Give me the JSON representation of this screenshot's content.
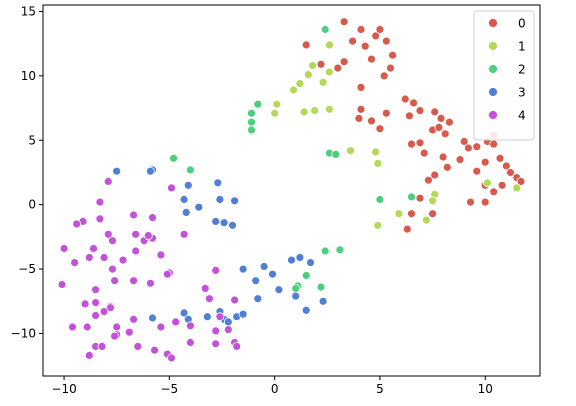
{
  "chart_data": {
    "type": "scatter",
    "title": "",
    "xlabel": "",
    "ylabel": "",
    "xlim": [
      -11.0,
      12.6
    ],
    "ylim": [
      -13.3,
      15.5
    ],
    "xticks": [
      -10,
      -5,
      0,
      5,
      10
    ],
    "yticks": [
      -10,
      -5,
      0,
      5,
      10,
      15
    ],
    "grid": false,
    "legend_position": "top-right",
    "series": [
      {
        "name": "0",
        "color": "#d9594c",
        "points": [
          [
            3.3,
            14.2
          ],
          [
            4.1,
            13.6
          ],
          [
            4.8,
            13.1
          ],
          [
            5.0,
            13.6
          ],
          [
            3.7,
            12.7
          ],
          [
            4.3,
            12.3
          ],
          [
            5.3,
            12.7
          ],
          [
            1.5,
            12.4
          ],
          [
            5.6,
            11.6
          ],
          [
            3.3,
            11.1
          ],
          [
            4.6,
            11.3
          ],
          [
            2.2,
            10.9
          ],
          [
            3.0,
            10.6
          ],
          [
            5.5,
            10.6
          ],
          [
            5.2,
            10.0
          ],
          [
            4.1,
            9.1
          ],
          [
            6.2,
            8.2
          ],
          [
            6.6,
            7.9
          ],
          [
            6.9,
            7.3
          ],
          [
            4.1,
            7.4
          ],
          [
            5.3,
            7.1
          ],
          [
            7.6,
            7.2
          ],
          [
            7.9,
            6.7
          ],
          [
            8.3,
            6.4
          ],
          [
            4.0,
            6.7
          ],
          [
            4.6,
            6.5
          ],
          [
            6.4,
            6.9
          ],
          [
            5.0,
            5.9
          ],
          [
            7.5,
            5.8
          ],
          [
            7.8,
            6.0
          ],
          [
            8.1,
            5.5
          ],
          [
            10.4,
            5.4
          ],
          [
            9.0,
            4.9
          ],
          [
            10.1,
            4.9
          ],
          [
            6.5,
            4.7
          ],
          [
            6.9,
            4.8
          ],
          [
            10.4,
            4.7
          ],
          [
            9.6,
            4.5
          ],
          [
            9.2,
            4.4
          ],
          [
            7.1,
            4.0
          ],
          [
            8.0,
            3.7
          ],
          [
            8.8,
            3.5
          ],
          [
            10.7,
            3.6
          ],
          [
            10.0,
            3.3
          ],
          [
            11.0,
            3.0
          ],
          [
            8.2,
            2.9
          ],
          [
            11.2,
            2.5
          ],
          [
            9.6,
            2.6
          ],
          [
            7.6,
            2.3
          ],
          [
            11.5,
            2.1
          ],
          [
            11.7,
            1.8
          ],
          [
            7.3,
            1.9
          ],
          [
            10.0,
            1.5
          ],
          [
            10.8,
            1.5
          ],
          [
            10.4,
            1.0
          ],
          [
            6.9,
            0.5
          ],
          [
            6.5,
            -0.7
          ],
          [
            7.5,
            -0.7
          ],
          [
            9.3,
            0.2
          ],
          [
            10.0,
            0.2
          ],
          [
            6.3,
            -1.9
          ]
        ]
      },
      {
        "name": "1",
        "color": "#b6d858",
        "points": [
          [
            2.6,
            12.4
          ],
          [
            1.8,
            10.8
          ],
          [
            1.6,
            10.1
          ],
          [
            2.6,
            10.3
          ],
          [
            1.2,
            9.4
          ],
          [
            0.9,
            8.9
          ],
          [
            2.3,
            9.5
          ],
          [
            0.1,
            7.8
          ],
          [
            0.0,
            7.1
          ],
          [
            1.4,
            7.2
          ],
          [
            1.9,
            7.3
          ],
          [
            2.6,
            7.4
          ],
          [
            3.6,
            4.2
          ],
          [
            4.8,
            4.1
          ],
          [
            4.9,
            3.2
          ],
          [
            10.1,
            1.7
          ],
          [
            11.5,
            1.3
          ],
          [
            7.6,
            0.8
          ],
          [
            7.5,
            0.3
          ],
          [
            5.9,
            -0.7
          ],
          [
            4.9,
            -1.6
          ],
          [
            7.2,
            -1.2
          ]
        ]
      },
      {
        "name": "2",
        "color": "#4ecf7f",
        "points": [
          [
            2.4,
            13.6
          ],
          [
            -0.8,
            7.8
          ],
          [
            -1.1,
            7.1
          ],
          [
            -1.1,
            6.4
          ],
          [
            -1.1,
            5.8
          ],
          [
            2.6,
            4.0
          ],
          [
            2.9,
            3.9
          ],
          [
            -4.8,
            3.6
          ],
          [
            -4.0,
            2.7
          ],
          [
            6.5,
            0.6
          ],
          [
            5.0,
            0.4
          ],
          [
            2.4,
            -3.6
          ],
          [
            3.1,
            -3.5
          ],
          [
            1.5,
            -5.5
          ],
          [
            1.1,
            -6.3
          ],
          [
            1.0,
            -6.5
          ],
          [
            2.2,
            -6.4
          ]
        ]
      },
      {
        "name": "3",
        "color": "#4f7fd6",
        "points": [
          [
            -7.5,
            2.6
          ],
          [
            -5.8,
            2.7
          ],
          [
            -5.9,
            2.6
          ],
          [
            -4.1,
            1.5
          ],
          [
            -2.7,
            1.7
          ],
          [
            -4.3,
            0.4
          ],
          [
            -2.6,
            0.4
          ],
          [
            -1.9,
            0.3
          ],
          [
            -3.6,
            -0.2
          ],
          [
            -4.2,
            -0.6
          ],
          [
            -2.8,
            -1.3
          ],
          [
            -2.4,
            -1.4
          ],
          [
            -2.0,
            -1.6
          ],
          [
            1.2,
            -4.1
          ],
          [
            0.8,
            -4.3
          ],
          [
            -1.5,
            -5.0
          ],
          [
            -0.5,
            -4.8
          ],
          [
            -0.1,
            -5.4
          ],
          [
            -0.9,
            -5.9
          ],
          [
            0.2,
            -6.6
          ],
          [
            -0.8,
            -7.3
          ],
          [
            1.0,
            -7.1
          ],
          [
            1.7,
            -4.5
          ],
          [
            2.3,
            -7.5
          ],
          [
            -4.3,
            -8.4
          ],
          [
            -4.1,
            -8.9
          ],
          [
            -3.2,
            -8.7
          ],
          [
            -2.6,
            -8.3
          ],
          [
            -2.4,
            -8.9
          ],
          [
            -1.8,
            -8.7
          ],
          [
            -1.5,
            -8.5
          ],
          [
            -2.2,
            -9.1
          ],
          [
            1.5,
            -8.2
          ],
          [
            -5.8,
            -8.8
          ]
        ]
      },
      {
        "name": "4",
        "color": "#c452d9",
        "points": [
          [
            -7.9,
            1.8
          ],
          [
            -8.3,
            0.2
          ],
          [
            -4.9,
            1.3
          ],
          [
            -9.1,
            -1.3
          ],
          [
            -9.4,
            -1.5
          ],
          [
            -8.3,
            -1.1
          ],
          [
            -6.7,
            -0.8
          ],
          [
            -5.8,
            -1.0
          ],
          [
            -7.9,
            -2.3
          ],
          [
            -7.7,
            -2.8
          ],
          [
            -6.6,
            -2.3
          ],
          [
            -6.2,
            -2.8
          ],
          [
            -5.8,
            -2.6
          ],
          [
            -6.0,
            -2.4
          ],
          [
            -4.3,
            -2.3
          ],
          [
            -10.0,
            -3.4
          ],
          [
            -8.6,
            -3.4
          ],
          [
            -9.5,
            -4.5
          ],
          [
            -8.8,
            -4.1
          ],
          [
            -8.1,
            -4.1
          ],
          [
            -5.4,
            -3.9
          ],
          [
            -7.2,
            -4.3
          ],
          [
            -6.6,
            -3.6
          ],
          [
            -7.7,
            -5.0
          ],
          [
            -5.0,
            -5.3
          ],
          [
            -5.1,
            -5.4
          ],
          [
            -7.6,
            -5.9
          ],
          [
            -6.7,
            -5.9
          ],
          [
            -5.9,
            -6.1
          ],
          [
            -8.5,
            -6.6
          ],
          [
            -10.1,
            -6.2
          ],
          [
            -9.0,
            -7.7
          ],
          [
            -8.5,
            -7.6
          ],
          [
            -7.8,
            -7.9
          ],
          [
            -7.8,
            -8.0
          ],
          [
            -8.5,
            -8.6
          ],
          [
            -8.1,
            -8.3
          ],
          [
            -9.6,
            -9.5
          ],
          [
            -8.9,
            -9.5
          ],
          [
            -7.5,
            -9.5
          ],
          [
            -6.7,
            -8.9
          ],
          [
            -5.4,
            -9.5
          ],
          [
            -7.5,
            -10.1
          ],
          [
            -6.9,
            -9.9
          ],
          [
            -4.7,
            -9.1
          ],
          [
            -4.0,
            -9.4
          ],
          [
            -3.3,
            -6.5
          ],
          [
            -2.8,
            -5.1
          ],
          [
            -1.9,
            -7.4
          ],
          [
            -2.6,
            -8.7
          ],
          [
            -2.8,
            -9.8
          ],
          [
            -2.2,
            -9.7
          ],
          [
            -2.8,
            -10.8
          ],
          [
            -3.1,
            -7.3
          ],
          [
            -7.6,
            -10.2
          ],
          [
            -8.5,
            -11.0
          ],
          [
            -8.2,
            -11.0
          ],
          [
            -8.8,
            -11.7
          ],
          [
            -6.5,
            -11.0
          ],
          [
            -5.7,
            -11.3
          ],
          [
            -5.1,
            -11.6
          ],
          [
            -4.9,
            -11.9
          ],
          [
            -4.0,
            -10.7
          ],
          [
            -1.9,
            -10.7
          ],
          [
            -1.8,
            -11.0
          ]
        ]
      }
    ]
  }
}
